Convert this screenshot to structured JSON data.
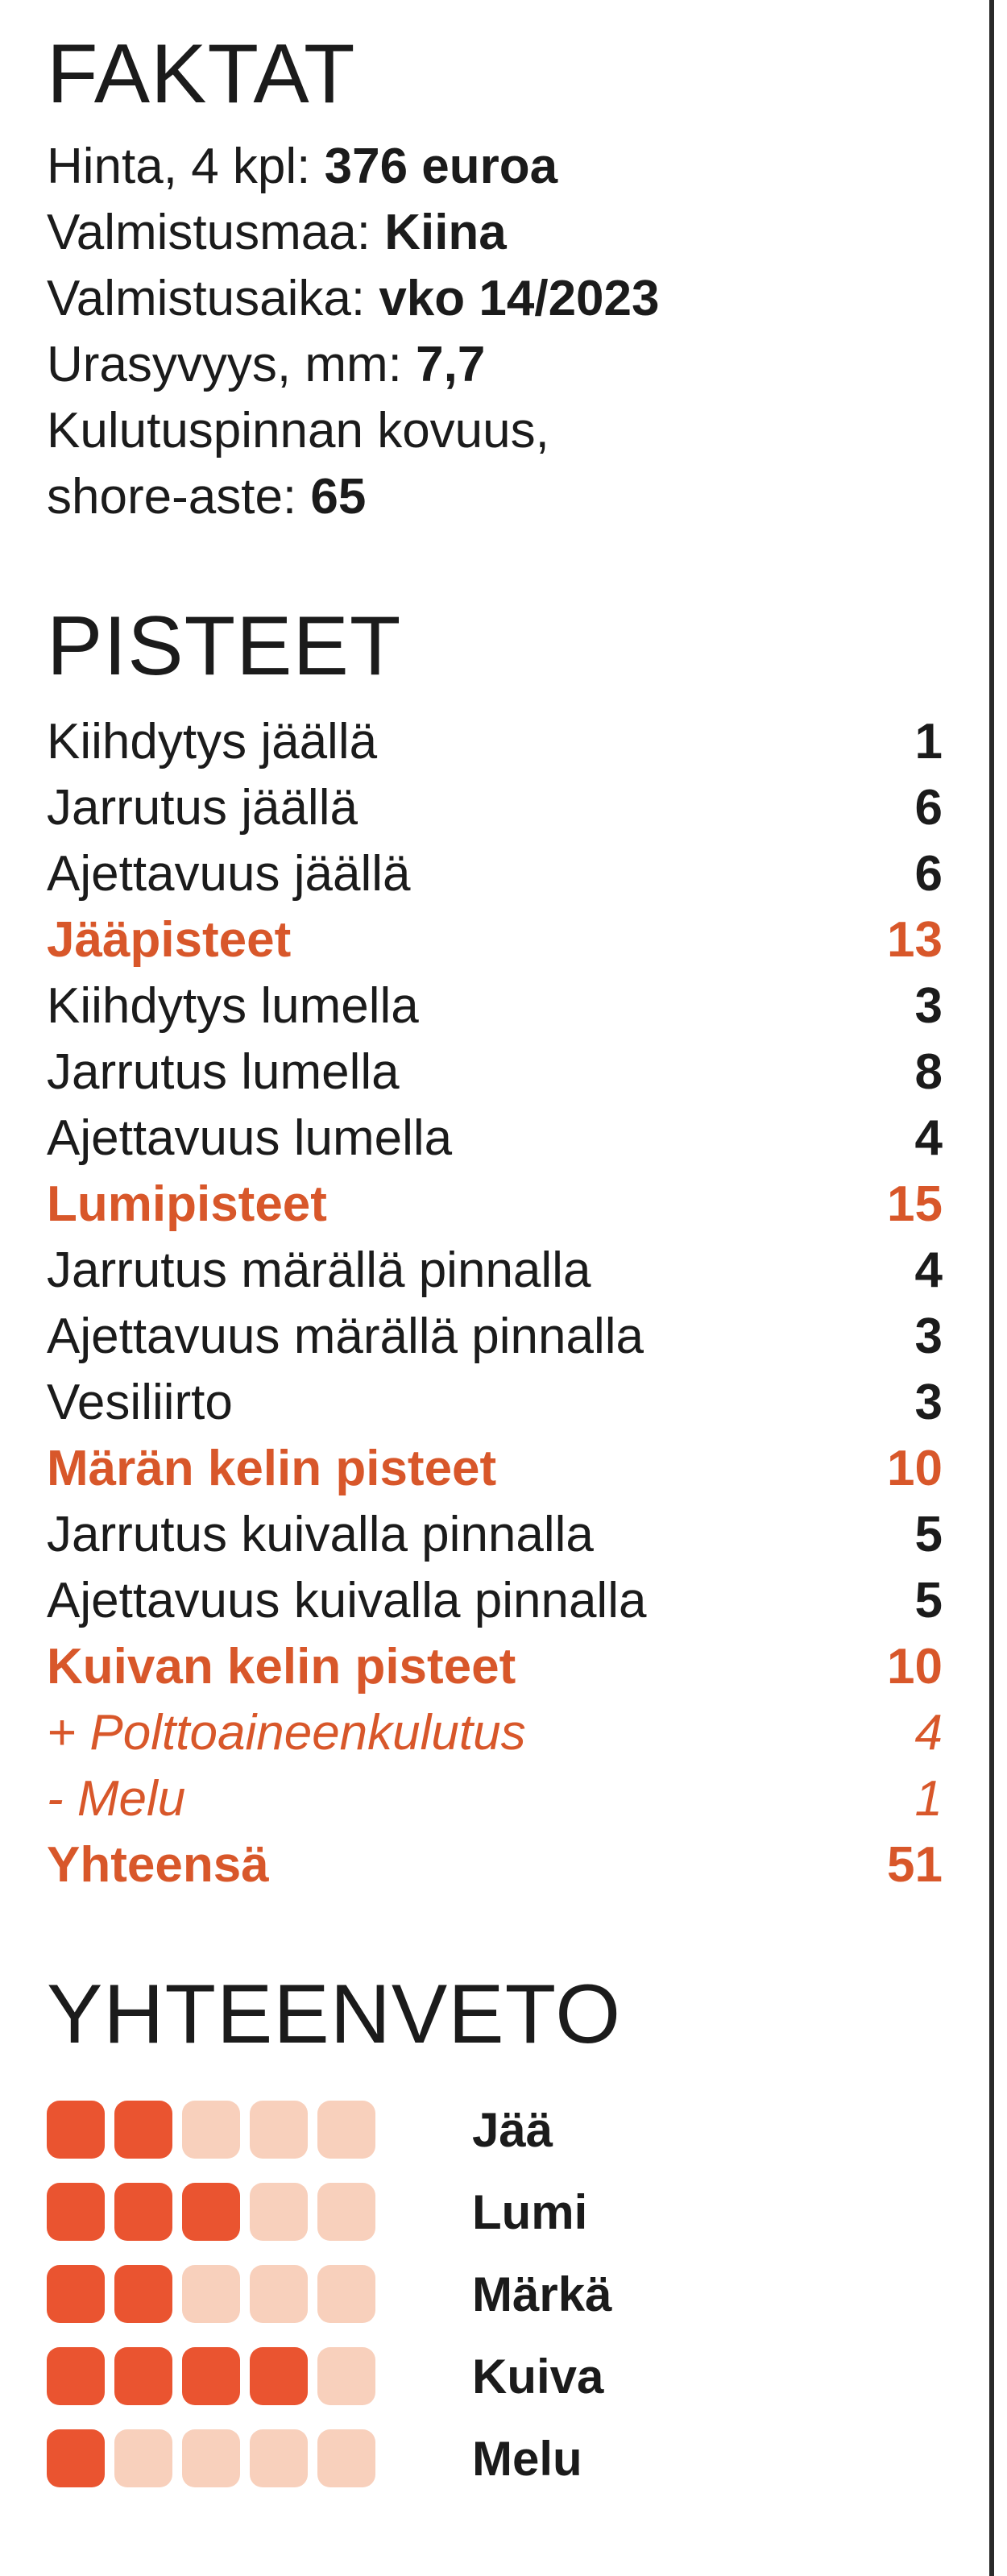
{
  "facts": {
    "heading": "FAKTAT",
    "lines": [
      {
        "label": "Hinta, 4 kpl: ",
        "value": "376 euroa"
      },
      {
        "label": "Valmistusmaa: ",
        "value": "Kiina"
      },
      {
        "label": "Valmistusaika: ",
        "value": "vko 14/2023"
      },
      {
        "label": "Urasyvyys, mm: ",
        "value": "7,7"
      },
      {
        "label": "Kulutuspinnan kovuus,",
        "value": ""
      },
      {
        "label": "shore-aste: ",
        "value": "65"
      }
    ]
  },
  "scores": {
    "heading": "PISTEET",
    "rows": [
      {
        "label": "Kiihdytys jäällä",
        "value": "1",
        "kind": "item"
      },
      {
        "label": "Jarrutus jäällä",
        "value": "6",
        "kind": "item"
      },
      {
        "label": "Ajettavuus jäällä",
        "value": "6",
        "kind": "item"
      },
      {
        "label": "Jääpisteet",
        "value": "13",
        "kind": "total"
      },
      {
        "label": "Kiihdytys lumella",
        "value": "3",
        "kind": "item"
      },
      {
        "label": "Jarrutus lumella",
        "value": "8",
        "kind": "item"
      },
      {
        "label": "Ajettavuus lumella",
        "value": "4",
        "kind": "item"
      },
      {
        "label": "Lumipisteet",
        "value": "15",
        "kind": "total"
      },
      {
        "label": "Jarrutus märällä pinnalla",
        "value": "4",
        "kind": "item"
      },
      {
        "label": "Ajettavuus märällä pinnalla",
        "value": "3",
        "kind": "item"
      },
      {
        "label": "Vesiliirto",
        "value": "3",
        "kind": "item"
      },
      {
        "label": "Märän kelin pisteet",
        "value": "10",
        "kind": "total"
      },
      {
        "label": "Jarrutus kuivalla pinnalla",
        "value": "5",
        "kind": "item"
      },
      {
        "label": "Ajettavuus kuivalla pinnalla",
        "value": "5",
        "kind": "item"
      },
      {
        "label": "Kuivan kelin pisteet",
        "value": "10",
        "kind": "total"
      },
      {
        "label": "+ Polttoaineenkulutus",
        "value": "4",
        "kind": "adj"
      },
      {
        "label": "- Melu",
        "value": "1",
        "kind": "adj"
      },
      {
        "label": "Yhteensä",
        "value": "51",
        "kind": "total"
      }
    ]
  },
  "summary": {
    "heading": "YHTEENVETO",
    "max_dots": 5,
    "colors": {
      "filled": "#ea5430",
      "empty": "#f8d0bc",
      "highlight": "#d8572a"
    },
    "rows": [
      {
        "label": "Jää",
        "rating": 2
      },
      {
        "label": "Lumi",
        "rating": 3
      },
      {
        "label": "Märkä",
        "rating": 2
      },
      {
        "label": "Kuiva",
        "rating": 4
      },
      {
        "label": "Melu",
        "rating": 1
      }
    ]
  }
}
